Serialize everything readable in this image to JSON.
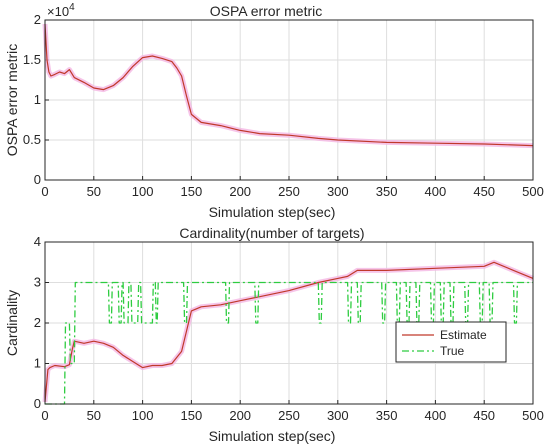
{
  "chart_data": [
    {
      "type": "line",
      "title": "OSPA error metric",
      "xlabel": "Simulation step(sec)",
      "ylabel": "OSPA error metric",
      "y_exponent_label": "×10",
      "y_exponent_power": "4",
      "xlim": [
        0,
        500
      ],
      "ylim": [
        0,
        2
      ],
      "x_ticks": [
        "0",
        "50",
        "100",
        "150",
        "200",
        "250",
        "300",
        "350",
        "400",
        "450",
        "500"
      ],
      "y_ticks": [
        "0",
        "0.5",
        "1",
        "1.5",
        "2"
      ],
      "grid": true,
      "series": [
        {
          "color": "#c0392b",
          "shadow_color": "#f4b6e4",
          "x": [
            0,
            2,
            4,
            6,
            10,
            15,
            20,
            25,
            30,
            40,
            50,
            60,
            70,
            80,
            90,
            100,
            110,
            120,
            130,
            135,
            140,
            145,
            150,
            160,
            170,
            180,
            200,
            220,
            250,
            280,
            300,
            350,
            400,
            450,
            500
          ],
          "y": [
            1.95,
            1.5,
            1.35,
            1.3,
            1.32,
            1.35,
            1.33,
            1.38,
            1.28,
            1.22,
            1.15,
            1.13,
            1.18,
            1.28,
            1.42,
            1.53,
            1.55,
            1.52,
            1.48,
            1.4,
            1.3,
            1.05,
            0.82,
            0.72,
            0.7,
            0.68,
            0.62,
            0.58,
            0.56,
            0.52,
            0.5,
            0.47,
            0.46,
            0.45,
            0.43
          ]
        }
      ]
    },
    {
      "type": "line",
      "title": "Cardinality(number of targets)",
      "xlabel": "Simulation step(sec)",
      "ylabel": "Cardinality",
      "xlim": [
        0,
        500
      ],
      "ylim": [
        0,
        4
      ],
      "x_ticks": [
        "0",
        "50",
        "100",
        "150",
        "200",
        "250",
        "300",
        "350",
        "400",
        "450",
        "500"
      ],
      "y_ticks": [
        "0",
        "1",
        "2",
        "3",
        "4"
      ],
      "grid": true,
      "legend_position": "middle-right",
      "series": [
        {
          "name": "Estimate",
          "color": "#c0392b",
          "shadow_color": "#f4b6e4",
          "style": "solid",
          "x": [
            0,
            3,
            5,
            10,
            20,
            25,
            28,
            30,
            40,
            50,
            60,
            70,
            80,
            90,
            100,
            110,
            120,
            130,
            140,
            145,
            150,
            160,
            180,
            200,
            220,
            250,
            280,
            300,
            310,
            320,
            350,
            400,
            450,
            460,
            480,
            500
          ],
          "y": [
            0.05,
            0.85,
            0.9,
            0.95,
            0.92,
            0.97,
            1.35,
            1.55,
            1.5,
            1.55,
            1.5,
            1.4,
            1.2,
            1.05,
            0.9,
            0.95,
            0.95,
            1.0,
            1.3,
            1.8,
            2.3,
            2.4,
            2.45,
            2.55,
            2.65,
            2.8,
            3.0,
            3.1,
            3.15,
            3.3,
            3.3,
            3.35,
            3.4,
            3.5,
            3.3,
            3.1
          ]
        },
        {
          "name": "True",
          "color": "#2ecc40",
          "style": "dashed",
          "x": [
            0,
            20,
            21,
            25,
            26,
            30,
            31,
            65,
            66,
            68,
            69,
            75,
            76,
            78,
            79,
            80,
            81,
            85,
            86,
            88,
            89,
            95,
            96,
            98,
            99,
            110,
            111,
            113,
            114,
            115,
            116,
            142,
            143,
            145,
            146,
            185,
            186,
            188,
            189,
            215,
            216,
            218,
            219,
            280,
            281,
            283,
            284,
            310,
            311,
            313,
            314,
            320,
            321,
            323,
            324,
            345,
            346,
            348,
            349,
            360,
            361,
            363,
            364,
            370,
            371,
            373,
            374,
            380,
            381,
            383,
            384,
            395,
            396,
            398,
            399,
            405,
            406,
            408,
            409,
            415,
            416,
            418,
            419,
            430,
            431,
            433,
            434,
            445,
            446,
            448,
            449,
            455,
            456,
            458,
            459,
            480,
            481,
            483,
            484,
            500
          ],
          "y": [
            0,
            0,
            2,
            2,
            1,
            1,
            3,
            3,
            2,
            2,
            3,
            3,
            2,
            2,
            3,
            3,
            2,
            2,
            3,
            3,
            2,
            2,
            3,
            3,
            2,
            2,
            3,
            3,
            2,
            2,
            3,
            3,
            2,
            2,
            3,
            3,
            2,
            2,
            3,
            3,
            2,
            2,
            3,
            3,
            2,
            2,
            3,
            3,
            2,
            2,
            3,
            3,
            2,
            2,
            3,
            3,
            2,
            2,
            3,
            3,
            2,
            2,
            3,
            3,
            2,
            2,
            3,
            3,
            2,
            2,
            3,
            3,
            2,
            2,
            3,
            3,
            2,
            2,
            3,
            3,
            2,
            2,
            3,
            3,
            2,
            2,
            3,
            3,
            2,
            2,
            3,
            3,
            2,
            2,
            3,
            3,
            2,
            2,
            3,
            3
          ]
        }
      ]
    }
  ]
}
